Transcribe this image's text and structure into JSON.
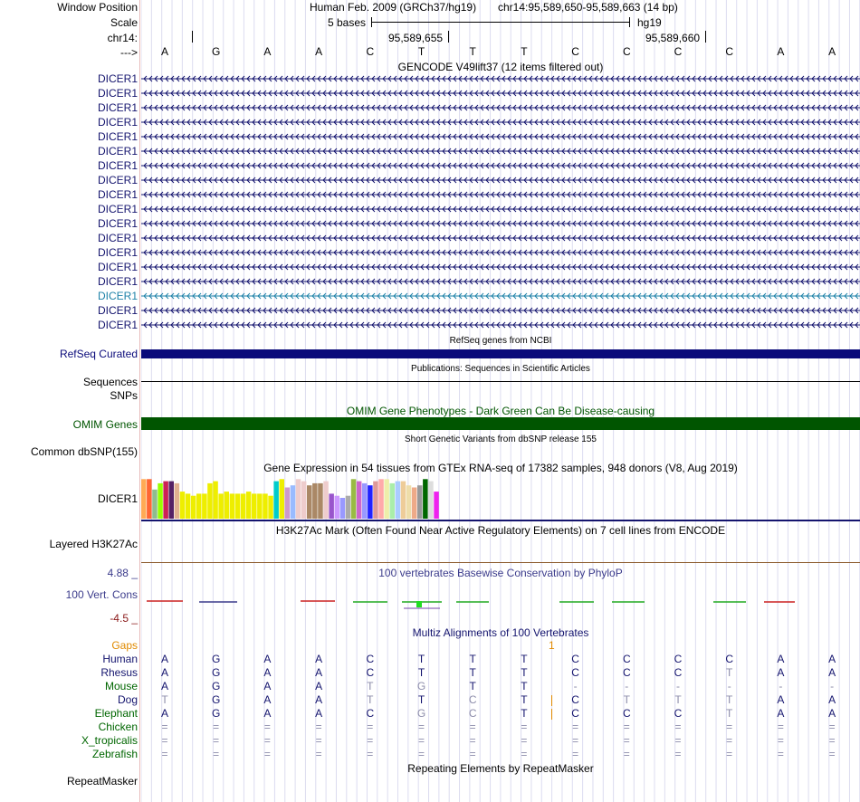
{
  "header": {
    "window_position_label": "Window Position",
    "scale_label": "Scale",
    "chrom_label": "chr14:",
    "strand_label": "--->",
    "assembly": "Human Feb. 2009 (GRCh37/hg19)",
    "position": "chr14:95,589,650-95,589,663 (14 bp)",
    "scale_text": "5 bases",
    "db": "hg19",
    "coord1": "95,589,655",
    "coord2": "95,589,660",
    "bases": [
      "A",
      "G",
      "A",
      "A",
      "C",
      "T",
      "T",
      "T",
      "C",
      "C",
      "C",
      "C",
      "A",
      "A"
    ]
  },
  "gencode": {
    "title": "GENCODE V49lift37 (12 items filtered out)",
    "gene_name": "DICER1",
    "count": 18,
    "highlight_index": 15,
    "color": "#14146e",
    "highlight_color": "#1e82a8"
  },
  "refseq": {
    "label": "RefSeq Curated",
    "title": "RefSeq genes from NCBI",
    "color": "#0a0a7a"
  },
  "publications": {
    "label": "Sequences",
    "title": "Publications: Sequences in Scientific Articles"
  },
  "snps": {
    "label": "SNPs"
  },
  "omim": {
    "label": "OMIM Genes",
    "title": "OMIM Gene Phenotypes - Dark Green Can Be Disease-causing",
    "color": "#005500"
  },
  "dbsnp": {
    "label": "Common dbSNP(155)",
    "title": "Short Genetic Variants from dbSNP release 155"
  },
  "gtex": {
    "title": "Gene Expression in 54 tissues from GTEx RNA-seq of 17382 samples, 948 donors (V8, Aug 2019)",
    "label": "DICER1",
    "values": [
      0.95,
      0.95,
      0.7,
      0.85,
      0.9,
      0.9,
      0.85,
      0.65,
      0.6,
      0.55,
      0.6,
      0.6,
      0.85,
      0.9,
      0.6,
      0.65,
      0.6,
      0.6,
      0.6,
      0.65,
      0.6,
      0.6,
      0.6,
      0.55,
      0.9,
      0.95,
      0.75,
      0.8,
      0.95,
      0.9,
      0.8,
      0.85,
      0.85,
      0.9,
      0.6,
      0.55,
      0.5,
      0.55,
      0.95,
      0.9,
      0.85,
      0.8,
      0.9,
      0.95,
      0.95,
      0.85,
      0.9,
      0.9,
      0.8,
      0.75,
      0.8,
      0.95,
      0.9,
      0.65
    ],
    "colors": [
      "#ffaa55",
      "#ff6633",
      "#8fbc8f",
      "#99ff00",
      "#cc2255",
      "#552266",
      "#e0b090",
      "#eeee00",
      "#eeee00",
      "#eeee00",
      "#eeee00",
      "#eeee00",
      "#eeee00",
      "#eeee00",
      "#eeee00",
      "#eeee00",
      "#eeee00",
      "#eeee00",
      "#eeee00",
      "#eeee00",
      "#eeee00",
      "#eeee00",
      "#eeee00",
      "#eeee00",
      "#00cccc",
      "#eeee00",
      "#cc99cc",
      "#99bbff",
      "#eecccc",
      "#eecccc",
      "#aa8866",
      "#aa8866",
      "#aa8866",
      "#eecccc",
      "#9955cc",
      "#cc99ff",
      "#9999ff",
      "#aaaaaa",
      "#99bb44",
      "#cc66cc",
      "#9999ff",
      "#2222ff",
      "#dd9999",
      "#ffaaaa",
      "#eeeeaa",
      "#aaeeaa",
      "#aaccff",
      "#eecc99",
      "#eeddaa",
      "#eeaa88",
      "#999999",
      "#006600",
      "#dddddd",
      "#ee22ee"
    ]
  },
  "h3k27ac": {
    "label": "Layered H3K27Ac",
    "title": "H3K27Ac Mark (Often Found Near Active Regulatory Elements) on 7 cell lines from ENCODE"
  },
  "conservation": {
    "label": "100 Vert. Cons",
    "title": "100 vertebrates Basewise Conservation by PhyloP",
    "max": "4.88 _",
    "min": "-4.5 _"
  },
  "multiz": {
    "title": "Multiz Alignments of 100 Vertebrates",
    "gaps_label": "Gaps",
    "gap_marker": "1",
    "species": [
      {
        "name": "Human",
        "color": "#14146e",
        "seq": [
          "A",
          "G",
          "A",
          "A",
          "C",
          "T",
          "T",
          "T",
          "C",
          "C",
          "C",
          "C",
          "A",
          "A"
        ]
      },
      {
        "name": "Rhesus",
        "color": "#14146e",
        "seq": [
          "A",
          "G",
          "A",
          "A",
          "C",
          "T",
          "T",
          "T",
          "C",
          "C",
          "C",
          "T",
          "A",
          "A"
        ]
      },
      {
        "name": "Mouse",
        "color": "#006600",
        "seq": [
          "A",
          "G",
          "A",
          "A",
          "T",
          "G",
          "T",
          "T",
          "-",
          "-",
          "-",
          "-",
          "-",
          "-"
        ]
      },
      {
        "name": "Dog",
        "color": "#14146e",
        "seq": [
          "T",
          "G",
          "A",
          "A",
          "T",
          "T",
          "C",
          "T",
          "C",
          "T",
          "T",
          "T",
          "A",
          "A"
        ]
      },
      {
        "name": "Elephant",
        "color": "#006600",
        "seq": [
          "A",
          "G",
          "A",
          "A",
          "C",
          "G",
          "C",
          "T",
          "C",
          "C",
          "C",
          "T",
          "A",
          "A"
        ]
      },
      {
        "name": "Chicken",
        "color": "#006600",
        "seq": [
          "=",
          "=",
          "=",
          "=",
          "=",
          "=",
          "=",
          "=",
          "=",
          "=",
          "=",
          "=",
          "=",
          "="
        ]
      },
      {
        "name": "X_tropicalis",
        "color": "#006600",
        "seq": [
          "=",
          "=",
          "=",
          "=",
          "=",
          "=",
          "=",
          "=",
          "=",
          "=",
          "=",
          "=",
          "=",
          "="
        ]
      },
      {
        "name": "Zebrafish",
        "color": "#006600",
        "seq": [
          "=",
          "=",
          "=",
          "=",
          "=",
          "=",
          "=",
          "=",
          "=",
          "=",
          "=",
          "=",
          "=",
          "="
        ]
      }
    ]
  },
  "repeatmasker": {
    "label": "RepeatMasker",
    "title": "Repeating Elements by RepeatMasker"
  }
}
